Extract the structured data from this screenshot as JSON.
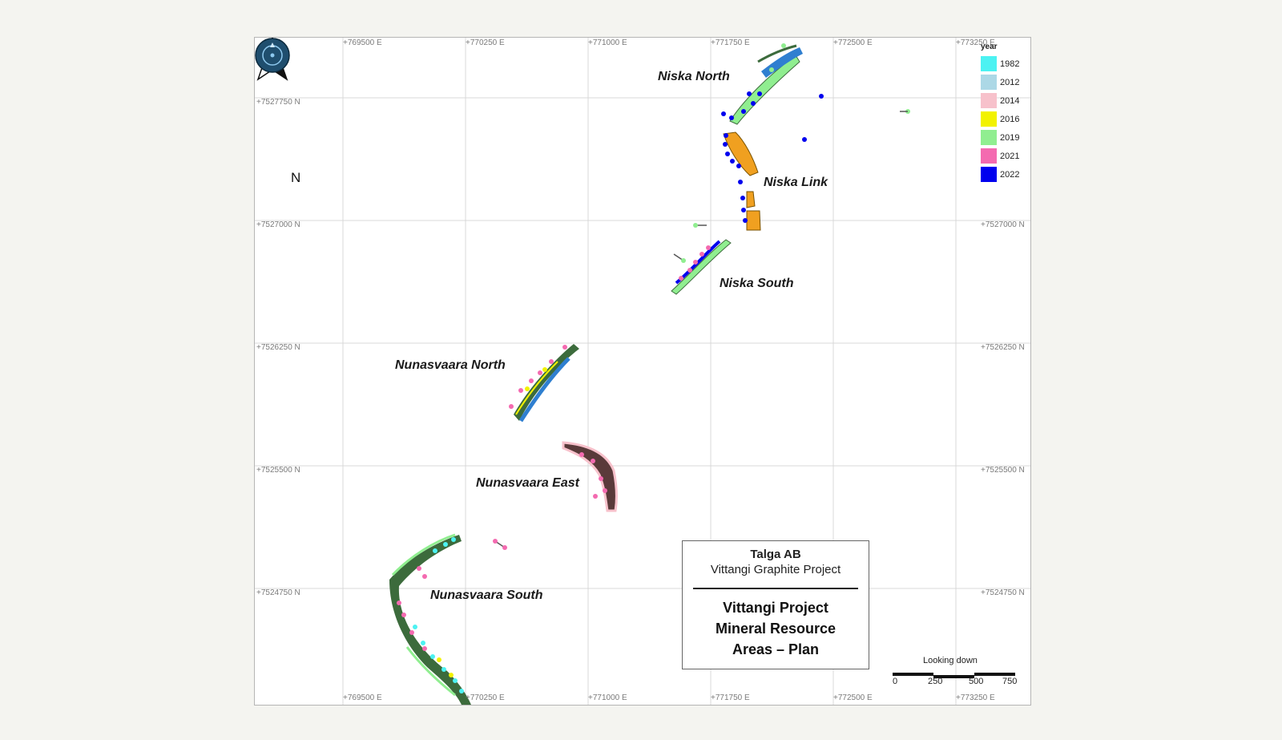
{
  "map": {
    "easting_labels": [
      "+769500 E",
      "+770250 E",
      "+771000 E",
      "+771750 E",
      "+772500 E",
      "+773250 E"
    ],
    "northing_labels": [
      "+7527750 N",
      "+7527000 N",
      "+7526250 N",
      "+7525500 N",
      "+7524750 N"
    ],
    "north_arrow_label": "N",
    "areas": [
      "Niska North",
      "Niska Link",
      "Niska South",
      "Nunasvaara North",
      "Nunasvaara East",
      "Nunasvaara South"
    ],
    "legend": {
      "title": "year",
      "items": [
        {
          "label": "1982",
          "color": "#4cf2f2"
        },
        {
          "label": "2012",
          "color": "#acd8e6"
        },
        {
          "label": "2014",
          "color": "#f7c1cb"
        },
        {
          "label": "2016",
          "color": "#f2f200"
        },
        {
          "label": "2019",
          "color": "#90ee90"
        },
        {
          "label": "2021",
          "color": "#f46ab0"
        },
        {
          "label": "2022",
          "color": "#0000ee"
        }
      ]
    },
    "title_block": {
      "company": "Talga AB",
      "project": "Vittangi Graphite Project",
      "heading_lines": [
        "Vittangi Project",
        "Mineral Resource",
        "Areas – Plan"
      ]
    },
    "looking_down": "Looking down",
    "scale_labels": [
      "0",
      "250",
      "500",
      "750"
    ],
    "colors": {
      "ore_green": "#3c6b3c",
      "ore_light_green": "#90ee90",
      "ore_orange": "#f0a020",
      "ore_blue": "#2f7fd0",
      "ore_pink": "#f7c1cb",
      "grid": "#d9d9d9"
    }
  }
}
